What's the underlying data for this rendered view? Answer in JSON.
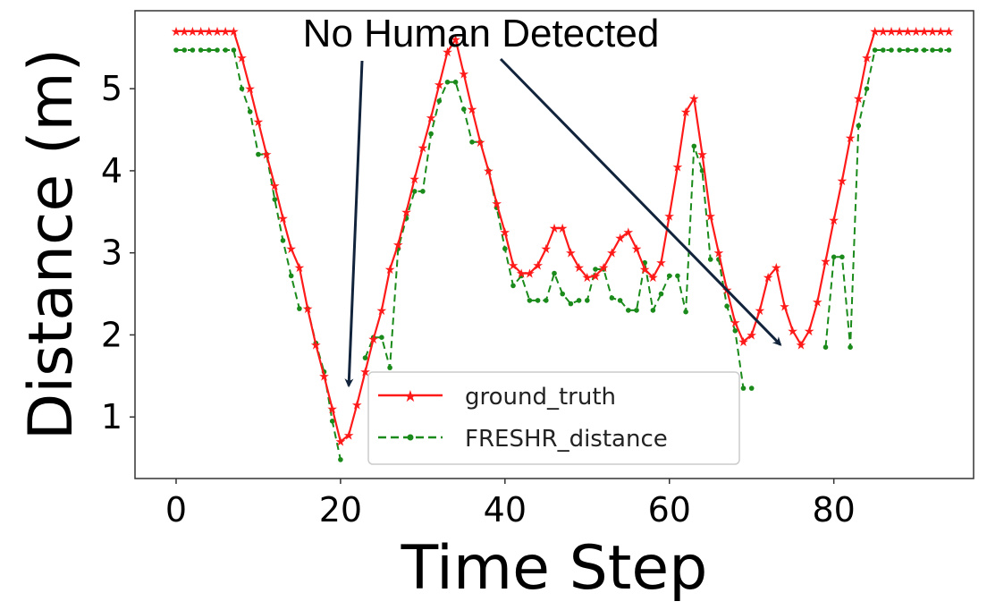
{
  "chart_data": {
    "type": "line",
    "xlabel": "Time Step",
    "ylabel": "Distance (m)",
    "xlim": [
      -5,
      97
    ],
    "ylim": [
      0.25,
      5.95
    ],
    "xticks": [
      0,
      20,
      40,
      60,
      80
    ],
    "yticks": [
      1,
      2,
      3,
      4,
      5
    ],
    "grid": false,
    "legend_position": "bottom-center",
    "annotation": {
      "text": "No Human Detected",
      "arrow_targets": [
        [
          21,
          1.38
        ],
        [
          73.5,
          1.88
        ]
      ]
    },
    "series": [
      {
        "name": "ground_truth",
        "color": "#ff1a1a",
        "style": "solid",
        "marker": "star",
        "x": [
          0,
          1,
          2,
          3,
          4,
          5,
          6,
          7,
          8,
          9,
          10,
          11,
          12,
          13,
          14,
          15,
          16,
          17,
          18,
          19,
          20,
          21,
          22,
          23,
          24,
          25,
          26,
          27,
          28,
          29,
          30,
          31,
          32,
          33,
          34,
          35,
          36,
          37,
          38,
          39,
          40,
          41,
          42,
          43,
          44,
          45,
          46,
          47,
          48,
          49,
          50,
          51,
          52,
          53,
          54,
          55,
          56,
          57,
          58,
          59,
          60,
          61,
          62,
          63,
          64,
          65,
          66,
          67,
          68,
          69,
          70,
          71,
          72,
          73,
          74,
          75,
          76,
          77,
          78,
          79,
          80,
          81,
          82,
          83,
          84,
          85,
          86,
          87,
          88,
          89,
          90,
          91,
          92,
          93,
          94
        ],
        "y": [
          5.7,
          5.7,
          5.7,
          5.7,
          5.7,
          5.7,
          5.7,
          5.7,
          5.38,
          5.0,
          4.6,
          4.2,
          3.82,
          3.42,
          3.05,
          2.82,
          2.32,
          1.88,
          1.5,
          1.1,
          0.7,
          0.78,
          1.15,
          1.55,
          1.95,
          2.3,
          2.8,
          3.1,
          3.5,
          3.9,
          4.28,
          4.65,
          5.05,
          5.45,
          5.6,
          5.18,
          4.75,
          4.35,
          4.0,
          3.6,
          3.25,
          2.85,
          2.75,
          2.75,
          2.85,
          3.05,
          3.3,
          3.3,
          3.0,
          2.82,
          2.7,
          2.72,
          2.82,
          3.0,
          3.18,
          3.25,
          3.05,
          2.8,
          2.7,
          2.88,
          3.45,
          4.05,
          4.72,
          4.88,
          4.2,
          3.45,
          3.0,
          2.55,
          2.15,
          1.92,
          2.0,
          2.3,
          2.7,
          2.82,
          2.35,
          2.05,
          1.88,
          2.05,
          2.4,
          2.9,
          3.4,
          3.88,
          4.4,
          4.88,
          5.38,
          5.7,
          5.7,
          5.7,
          5.7,
          5.7,
          5.7,
          5.7,
          5.7,
          5.7,
          5.7
        ]
      },
      {
        "name": "FRESHR_distance",
        "color": "#1a8a1a",
        "style": "dashed",
        "marker": "dot",
        "x": [
          0,
          1,
          2,
          3,
          4,
          5,
          6,
          7,
          8,
          9,
          10,
          11,
          12,
          13,
          14,
          15,
          16,
          17,
          18,
          19,
          20,
          21,
          22,
          23,
          24,
          25,
          26,
          27,
          28,
          29,
          30,
          31,
          32,
          33,
          34,
          35,
          36,
          37,
          38,
          39,
          40,
          41,
          42,
          43,
          44,
          45,
          46,
          47,
          48,
          49,
          50,
          51,
          52,
          53,
          54,
          55,
          56,
          57,
          58,
          59,
          60,
          61,
          62,
          63,
          64,
          65,
          66,
          67,
          68,
          69,
          70,
          71,
          72,
          73,
          74,
          75,
          76,
          77,
          78,
          79,
          80,
          81,
          82,
          83,
          84,
          85,
          86,
          87,
          88,
          89,
          90,
          91,
          92,
          93,
          94
        ],
        "y": [
          5.47,
          5.47,
          5.47,
          5.47,
          5.47,
          5.47,
          5.47,
          5.47,
          5.0,
          4.72,
          4.2,
          4.2,
          3.65,
          3.15,
          2.72,
          2.32,
          2.32,
          1.9,
          1.55,
          0.95,
          0.48,
          null,
          null,
          1.72,
          1.97,
          1.97,
          1.6,
          3.05,
          3.42,
          3.75,
          3.75,
          4.45,
          4.85,
          5.08,
          5.08,
          4.75,
          4.35,
          4.35,
          4.0,
          3.55,
          3.05,
          2.6,
          2.72,
          2.42,
          2.42,
          2.42,
          2.75,
          2.5,
          2.38,
          2.42,
          2.42,
          2.8,
          2.8,
          2.45,
          2.42,
          2.3,
          2.3,
          2.88,
          2.3,
          2.5,
          2.72,
          2.72,
          2.28,
          4.3,
          4.0,
          2.92,
          2.92,
          2.35,
          2.05,
          1.35,
          1.35,
          null,
          null,
          null,
          null,
          null,
          null,
          null,
          null,
          1.85,
          2.95,
          2.95,
          1.85,
          4.55,
          5.0,
          5.47,
          5.47,
          5.47,
          5.47,
          5.47,
          5.47,
          5.47,
          5.47,
          5.47,
          5.47
        ]
      }
    ]
  }
}
